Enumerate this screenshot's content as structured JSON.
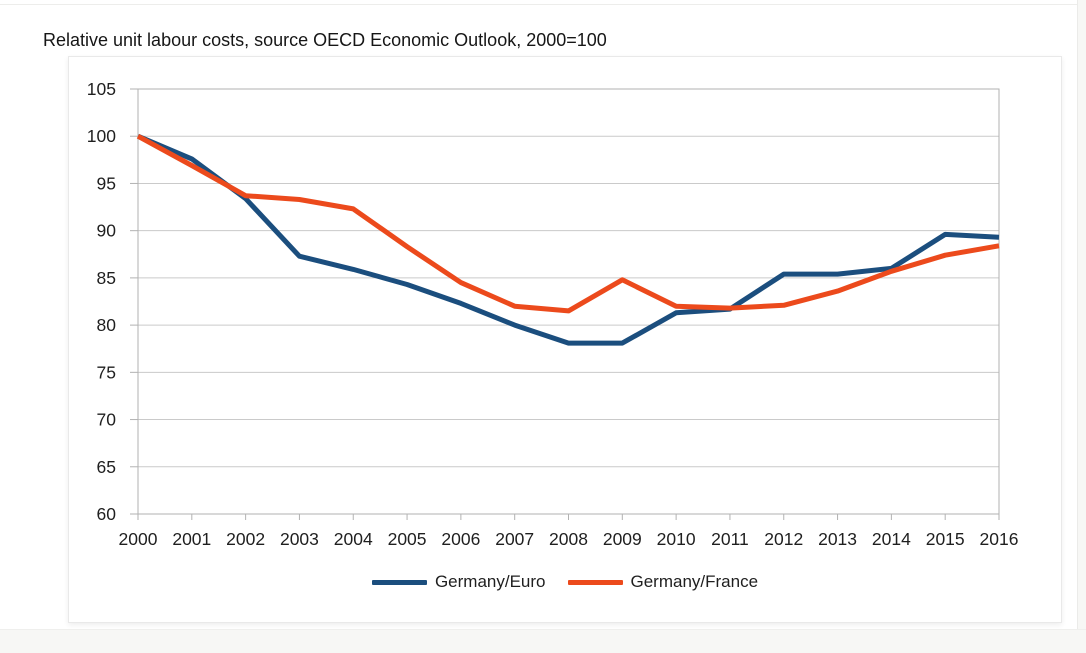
{
  "page": {
    "background": "#ffffff",
    "panel_background": "#ffffff",
    "footer_strip_color": "#f7f7f5"
  },
  "chart_data": {
    "type": "line",
    "title": "Relative unit labour costs, source OECD Economic Outlook, 2000=100",
    "x_labels": [
      "2000",
      "2001",
      "2002",
      "2003",
      "2004",
      "2005",
      "2006",
      "2007",
      "2008",
      "2009",
      "2010",
      "2011",
      "2012",
      "2013",
      "2014",
      "2015",
      "2016"
    ],
    "series": [
      {
        "name": "Germany/Euro",
        "color": "#1b4e7e",
        "values": [
          100,
          97.6,
          93.4,
          87.3,
          85.9,
          84.3,
          82.3,
          80.0,
          78.1,
          78.1,
          81.3,
          81.7,
          85.4,
          85.4,
          86.0,
          89.6,
          89.3
        ]
      },
      {
        "name": "Germany/France",
        "color": "#ec4a1c",
        "values": [
          100,
          96.9,
          93.7,
          93.3,
          92.3,
          88.3,
          84.5,
          82.0,
          81.5,
          84.8,
          82.0,
          81.8,
          82.1,
          83.6,
          85.7,
          87.4,
          88.4
        ]
      }
    ],
    "ylim": [
      60,
      105
    ],
    "yticks": [
      60,
      65,
      70,
      75,
      80,
      85,
      90,
      95,
      100,
      105
    ],
    "grid": "horizontal",
    "legend_position": "bottom",
    "xlabel": "",
    "ylabel": "",
    "grid_color": "#cacaca",
    "plot_border_color": "#b2b2b2",
    "tick_color": "#b2b2b2",
    "tick_label_color": "#1f1f1f",
    "line_width": 5
  }
}
